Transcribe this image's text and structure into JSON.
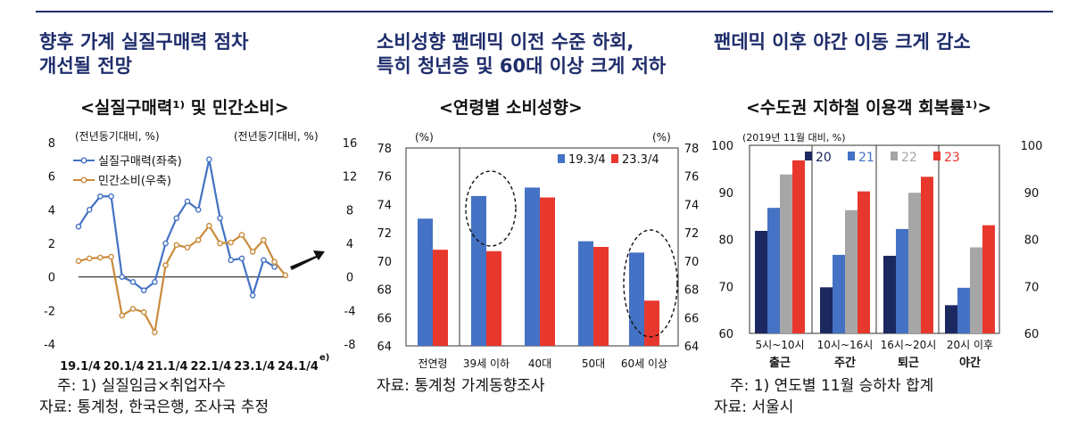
{
  "headers": [
    {
      "lines": [
        "향후 가계 실질구매력 점차",
        "개선될 전망"
      ]
    },
    {
      "lines": [
        "소비성향 팬데믹 이전 수준 하회,",
        "특히 청년층 및 60대 이상 크게 저하"
      ]
    },
    {
      "lines": [
        "팬데믹 이후 야간 이동 크게 감소"
      ]
    }
  ],
  "notes": {
    "c1_note": "주: 1) 실질임금×취업자수",
    "c1_source": "자료: 통계청, 한국은행, 조사국 추정",
    "c2_source": "자료: 통계청 가계동향조사",
    "c3_note": "주: 1) 연도별 11월 승하차 합계",
    "c3_source": "자료: 서울시"
  },
  "chart_data": [
    {
      "type": "line",
      "title": "<실질구매력¹⁾ 및 민간소비>",
      "left_axis_label": "(전년동기대비, %)",
      "right_axis_label": "(전년동기대비, %)",
      "x_tick_labels": [
        "19.1/4",
        "20.1/4",
        "21.1/4",
        "22.1/4",
        "23.1/4",
        "24.1/4"
      ],
      "x_last_suffix": "e)",
      "ylim_left": [
        -4,
        8
      ],
      "left_ticks": [
        "8",
        "6",
        "4",
        "2",
        "0",
        "-2",
        "-4"
      ],
      "ylim_right": [
        -8,
        16
      ],
      "right_ticks": [
        "16",
        "12",
        "8",
        "4",
        "0",
        "-4",
        "-8"
      ],
      "series": [
        {
          "name": "실질구매력(좌축)",
          "axis": "left",
          "color": "#4472c4",
          "values": [
            3.0,
            4.0,
            4.8,
            4.8,
            0.0,
            -0.3,
            -0.8,
            -0.3,
            2.0,
            3.5,
            4.5,
            4.0,
            7.0,
            3.5,
            1.0,
            1.1,
            -1.1,
            1.0,
            0.6
          ]
        },
        {
          "name": "민간소비(우축)",
          "axis": "right",
          "color": "#c98b3a",
          "values": [
            1.9,
            2.2,
            2.3,
            2.4,
            -4.6,
            -3.8,
            -4.2,
            -6.6,
            1.4,
            3.8,
            3.5,
            4.4,
            6.1,
            4.0,
            4.1,
            5.0,
            3.0,
            4.4,
            1.8,
            0.2
          ]
        }
      ],
      "forecast_arrow": "up-right"
    },
    {
      "type": "bar",
      "title": "<연령별 소비성향>",
      "left_unit": "(%)",
      "right_unit": "(%)",
      "ylim": [
        64,
        78
      ],
      "ticks": [
        "78",
        "76",
        "74",
        "72",
        "70",
        "68",
        "66",
        "64"
      ],
      "categories": [
        "전연령",
        "39세 이하",
        "40대",
        "50대",
        "60세 이상"
      ],
      "series": [
        {
          "name": "19.3/4",
          "color": "#4472c4",
          "values": [
            73.0,
            74.6,
            75.2,
            71.4,
            70.6
          ]
        },
        {
          "name": "23.3/4",
          "color": "#e8382e",
          "values": [
            70.8,
            70.7,
            74.5,
            71.0,
            67.2
          ]
        }
      ],
      "highlighted": [
        "39세 이하",
        "60세 이상"
      ]
    },
    {
      "type": "bar",
      "title": "<수도권 지하철 이용객 회복률¹⁾>",
      "axis_label": "(2019년 11월 대비, %)",
      "ylim": [
        60,
        100
      ],
      "ticks": [
        "100",
        "90",
        "80",
        "70",
        "60"
      ],
      "categories": [
        "5시~10시",
        "10시~16시",
        "16시~20시",
        "20시 이후"
      ],
      "category_names": [
        "출근",
        "주간",
        "퇴근",
        "야간"
      ],
      "series": [
        {
          "name": "20",
          "color": "#1c2860",
          "values": [
            81.8,
            69.8,
            76.5,
            66.0
          ]
        },
        {
          "name": "21",
          "color": "#4472c4",
          "values": [
            86.7,
            76.7,
            82.2,
            69.7
          ]
        },
        {
          "name": "22",
          "color": "#a6a6a6",
          "values": [
            93.8,
            86.2,
            89.9,
            78.3
          ]
        },
        {
          "name": "23",
          "color": "#e8382e",
          "values": [
            96.8,
            90.2,
            93.3,
            83.0
          ]
        }
      ]
    }
  ]
}
